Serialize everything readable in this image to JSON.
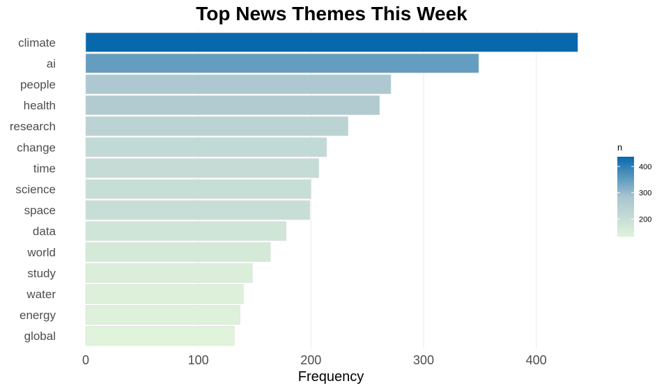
{
  "chart_data": {
    "type": "bar",
    "orientation": "horizontal",
    "title": "Top News Themes This Week",
    "xlabel": "Frequency",
    "ylabel": "",
    "categories": [
      "climate",
      "ai",
      "people",
      "health",
      "research",
      "change",
      "time",
      "science",
      "space",
      "data",
      "world",
      "study",
      "water",
      "energy",
      "global"
    ],
    "values": [
      437,
      349,
      271,
      261,
      233,
      214,
      207,
      200,
      199,
      178,
      164,
      148,
      140,
      137,
      132
    ],
    "xlim": [
      0,
      450
    ],
    "xticks": [
      0,
      100,
      200,
      300,
      400
    ],
    "grid": true,
    "legend": {
      "title": "n",
      "placement": "right",
      "ticks": [
        200,
        300,
        400
      ],
      "range": [
        132,
        437
      ],
      "color_low": "#e0f3db",
      "color_mid": "#a8c4cf",
      "color_high": "#0868ac"
    }
  }
}
